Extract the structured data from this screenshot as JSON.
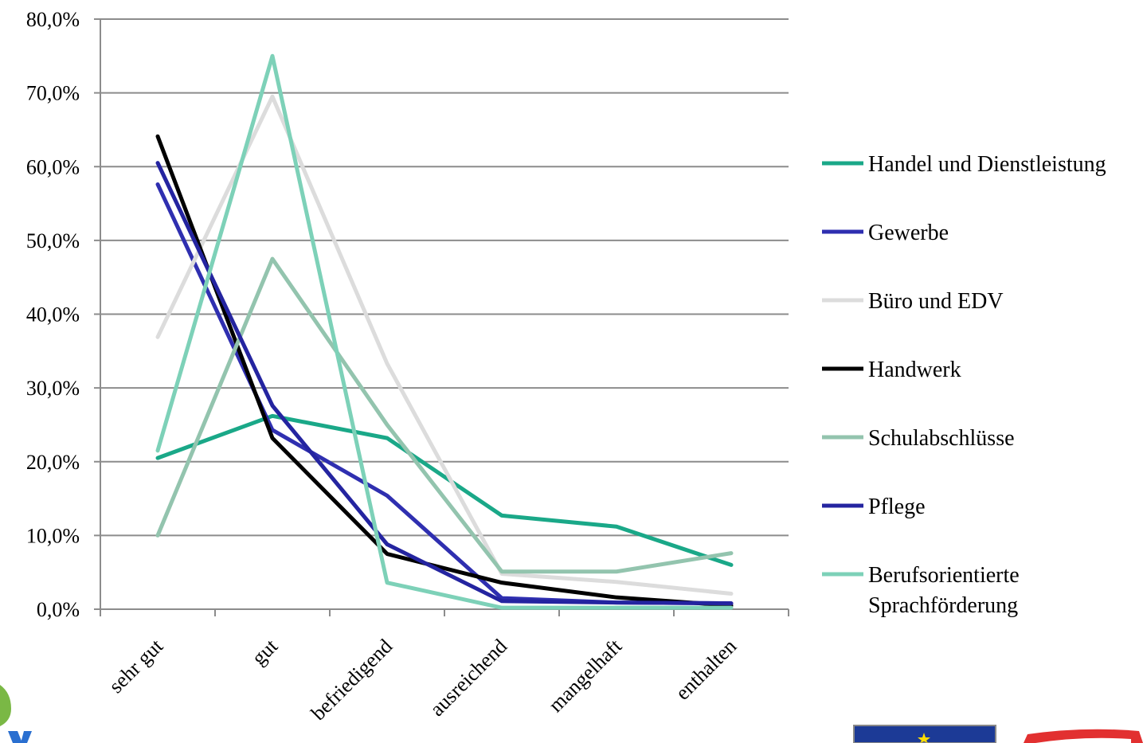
{
  "chart_data": {
    "type": "line",
    "categories": [
      "sehr gut",
      "gut",
      "befriedigend",
      "ausreichend",
      "mangelhaft",
      "enthalten"
    ],
    "ylim": [
      0,
      80
    ],
    "yticks": [
      "0,0%",
      "10,0%",
      "20,0%",
      "30,0%",
      "40,0%",
      "50,0%",
      "60,0%",
      "70,0%",
      "80,0%"
    ],
    "grid": true,
    "legend_position": "right",
    "series": [
      {
        "name": "Handel und Dienstleistung",
        "color": "#1aa888",
        "values": [
          20.5,
          26.2,
          23.2,
          12.7,
          11.2,
          6.0
        ]
      },
      {
        "name": "Gewerbe",
        "color": "#2f2fb0",
        "values": [
          57.6,
          24.3,
          15.4,
          1.5,
          0.9,
          0.8
        ]
      },
      {
        "name": "Büro und EDV",
        "color": "#dcdcdc",
        "values": [
          36.9,
          69.5,
          33.3,
          4.8,
          3.7,
          2.1
        ]
      },
      {
        "name": "Handwerk",
        "color": "#000000",
        "values": [
          64.1,
          23.2,
          7.5,
          3.6,
          1.6,
          0.5
        ]
      },
      {
        "name": "Schulabschlüsse",
        "color": "#93c4ae",
        "values": [
          10.0,
          47.5,
          25.0,
          5.1,
          5.1,
          7.6
        ]
      },
      {
        "name": "Pflege",
        "color": "#2424a0",
        "values": [
          60.5,
          27.6,
          8.8,
          1.1,
          0.9,
          0.8
        ]
      },
      {
        "name": "Berufsorientierte Sprachförderung",
        "name_lines": [
          "Berufsorientierte",
          "Sprachförderung"
        ],
        "color": "#7dd1b8",
        "values": [
          21.5,
          75.0,
          3.6,
          0.2,
          0.2,
          0.2
        ]
      }
    ]
  }
}
